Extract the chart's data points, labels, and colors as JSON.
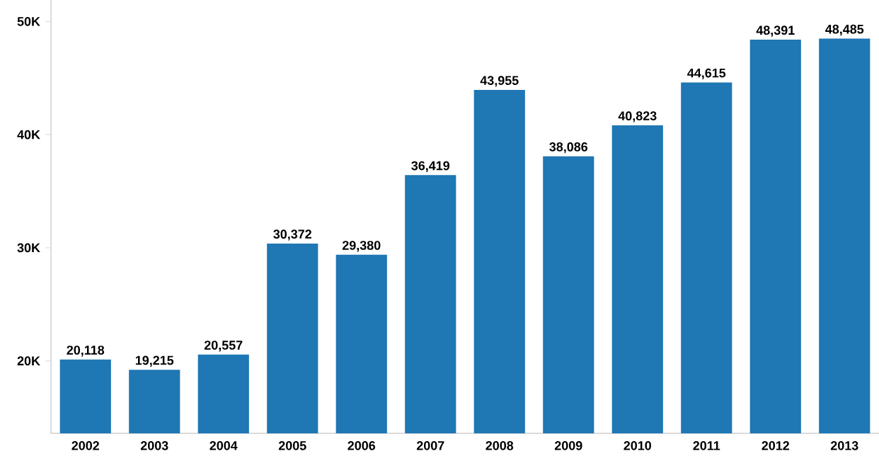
{
  "chart_data": {
    "type": "bar",
    "categories": [
      "2002",
      "2003",
      "2004",
      "2005",
      "2006",
      "2007",
      "2008",
      "2009",
      "2010",
      "2011",
      "2012",
      "2013"
    ],
    "values": [
      20118,
      19215,
      20557,
      30372,
      29380,
      36419,
      43955,
      38086,
      40823,
      44615,
      48391,
      48485
    ],
    "value_labels": [
      "20,118",
      "19,215",
      "20,557",
      "30,372",
      "29,380",
      "36,419",
      "43,955",
      "38,086",
      "40,823",
      "44,615",
      "48,391",
      "48,485"
    ],
    "color": "#1f77b4",
    "ylim": [
      13600,
      51900
    ],
    "yticks": [
      {
        "value": 20000,
        "label": "20K"
      },
      {
        "value": 30000,
        "label": "30K"
      },
      {
        "value": 40000,
        "label": "40K"
      },
      {
        "value": 50000,
        "label": "50K"
      }
    ]
  }
}
